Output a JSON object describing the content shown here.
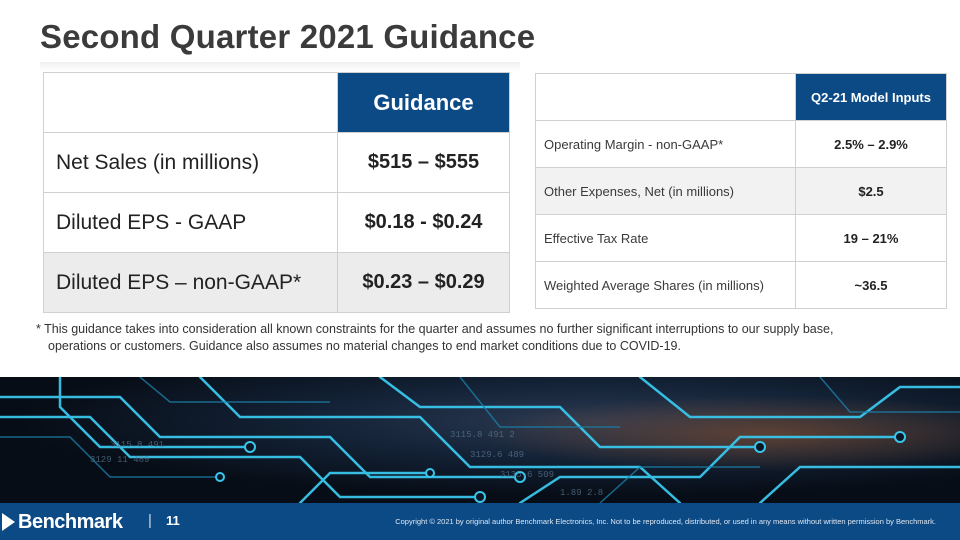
{
  "title": "Second Quarter 2021 Guidance",
  "guidance_table": {
    "header": "Guidance",
    "rows": [
      {
        "label": "Net Sales (in millions)",
        "value": "$515 – $555"
      },
      {
        "label": "Diluted EPS - GAAP",
        "value": "$0.18 - $0.24"
      },
      {
        "label": "Diluted EPS – non-GAAP*",
        "value": "$0.23 – $0.29"
      }
    ]
  },
  "model_table": {
    "header": "Q2-21 Model Inputs",
    "rows": [
      {
        "label": "Operating Margin -  non-GAAP*",
        "value": "2.5% – 2.9%"
      },
      {
        "label": "Other Expenses, Net (in millions)",
        "value": "$2.5"
      },
      {
        "label": "Effective Tax Rate",
        "value": "19 – 21%"
      },
      {
        "label": "Weighted Average Shares (in millions)",
        "value": "~36.5"
      }
    ]
  },
  "footnote": {
    "line1": "*  This guidance takes into consideration all known constraints for the quarter and assumes no further significant interruptions to our supply base,",
    "line2": "operations or customers. Guidance also assumes no material changes to end market conditions due to COVID-19."
  },
  "footer": {
    "logo": "Benchmark",
    "separator": "|",
    "page_number": "11",
    "copyright": "Copyright © 2021 by original author Benchmark Electronics, Inc. Not to be reproduced, distributed, or used in any means without written permission by Benchmark."
  },
  "colors": {
    "accent": "#0c4a86",
    "title": "#3b3b3b"
  }
}
